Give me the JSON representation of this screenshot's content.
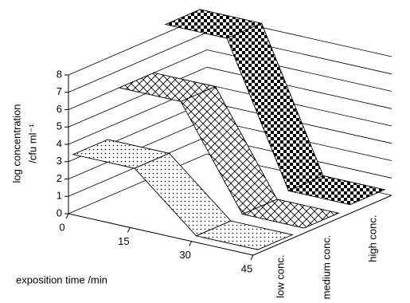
{
  "chart_data": {
    "type": "ribbon3d",
    "ylabel": [
      "log concentration",
      "/cfu ml⁻¹"
    ],
    "xlabel": "exposition time /min",
    "x": [
      0,
      15,
      30,
      45
    ],
    "xlim": [
      0,
      45
    ],
    "xticks": [
      0,
      15,
      30,
      45
    ],
    "ylim": [
      0,
      8
    ],
    "yticks": [
      0,
      1,
      2,
      3,
      4,
      5,
      6,
      7,
      8
    ],
    "grid": true,
    "series": [
      {
        "name": "low conc.",
        "pattern": "dots",
        "values": [
          3.3,
          3.3,
          0.2,
          0.2
        ]
      },
      {
        "name": "medium conc.",
        "pattern": "crosshatch",
        "values": [
          6,
          6,
          0.3,
          0.3
        ]
      },
      {
        "name": "high conc.",
        "pattern": "checker",
        "values": [
          8.5,
          8.5,
          0.5,
          0.5
        ]
      }
    ]
  }
}
